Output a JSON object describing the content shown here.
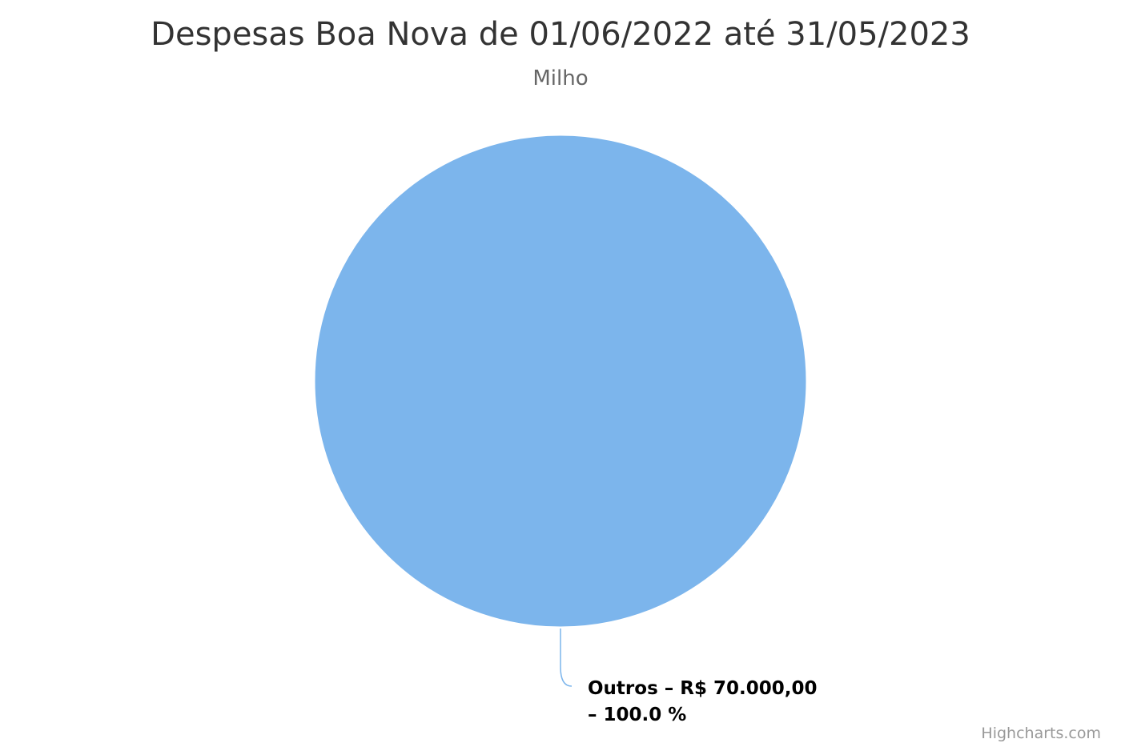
{
  "chart_data": {
    "type": "pie",
    "title": "Despesas Boa Nova de 01/06/2022 até 31/05/2023",
    "subtitle": "Milho",
    "slices": [
      {
        "name": "Outros",
        "value": 70000.0,
        "percent": 100.0,
        "label_line1": "Outros – R$ 70.000,00",
        "label_line2": "– 100.0 %",
        "color": "#7cb5ec"
      }
    ]
  },
  "credits": "Highcharts.com"
}
